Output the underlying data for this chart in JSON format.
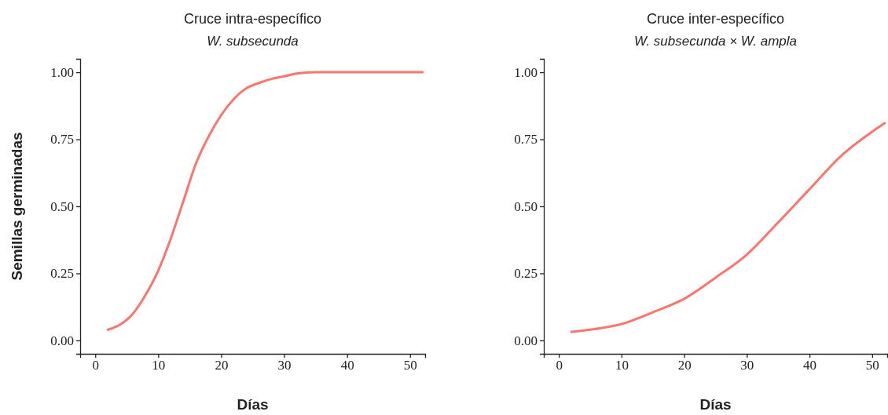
{
  "chart_data": [
    {
      "type": "line",
      "title": "Cruce intra-específico",
      "subtitle": "W. subsecunda",
      "xlabel": "Días",
      "ylabel": "Semillas germinadas",
      "x": [
        2,
        4,
        6,
        8,
        10,
        12,
        14,
        16,
        18,
        20,
        22,
        24,
        26,
        28,
        30,
        32,
        35,
        40,
        52
      ],
      "series": [
        {
          "color": "#f8766d",
          "values": [
            0.04,
            0.06,
            0.1,
            0.17,
            0.26,
            0.38,
            0.52,
            0.66,
            0.76,
            0.84,
            0.9,
            0.94,
            0.96,
            0.975,
            0.985,
            0.995,
            1.0,
            1.0,
            1.0
          ]
        }
      ],
      "xlim": [
        -2.4,
        52.4
      ],
      "ylim": [
        -0.05,
        1.05
      ],
      "xticks": [
        0,
        10,
        20,
        30,
        40,
        50
      ],
      "yticks": [
        {
          "value": 0,
          "label": "0.00"
        },
        {
          "value": 0.25,
          "label": "0.25"
        },
        {
          "value": 0.5,
          "label": "0.50"
        },
        {
          "value": 0.75,
          "label": "0.75"
        },
        {
          "value": 1,
          "label": "1.00"
        }
      ],
      "grid": false
    },
    {
      "type": "line",
      "title": "Cruce inter-específico",
      "subtitle": "W. subsecunda × W. ampla",
      "xlabel": "Días",
      "x": [
        2,
        5,
        10,
        15,
        20,
        25,
        30,
        35,
        40,
        45,
        50,
        52
      ],
      "series": [
        {
          "color": "#f8766d",
          "values": [
            0.032,
            0.04,
            0.061,
            0.105,
            0.155,
            0.234,
            0.32,
            0.44,
            0.564,
            0.687,
            0.778,
            0.81
          ]
        }
      ],
      "xlim": [
        -2.4,
        52.4
      ],
      "ylim": [
        -0.05,
        1.05
      ],
      "xticks": [
        0,
        10,
        20,
        30,
        40,
        50
      ],
      "yticks": [
        {
          "value": 0,
          "label": "0.00"
        },
        {
          "value": 0.25,
          "label": "0.25"
        },
        {
          "value": 0.5,
          "label": "0.50"
        },
        {
          "value": 0.75,
          "label": "0.75"
        },
        {
          "value": 1,
          "label": "1.00"
        }
      ],
      "grid": false
    }
  ]
}
